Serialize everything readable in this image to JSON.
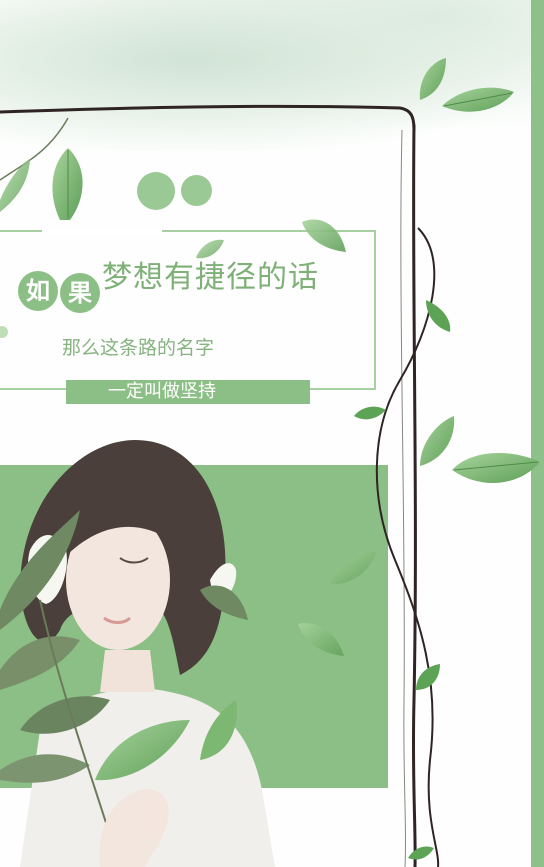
{
  "poster": {
    "badge_1": "如",
    "badge_2": "果",
    "headline": "梦想有捷径的话",
    "subline": "那么这条路的名字",
    "ribbon": "一定叫做坚持"
  },
  "colors": {
    "green_block": "#8cbf86",
    "band": "#8ec08a",
    "text_green": "#7fb078",
    "vine": "#2e2424",
    "leaf": "#7db873",
    "leaf_light": "#b7dbae"
  },
  "icons": [
    "leaf-icon",
    "vine-branch-icon"
  ]
}
